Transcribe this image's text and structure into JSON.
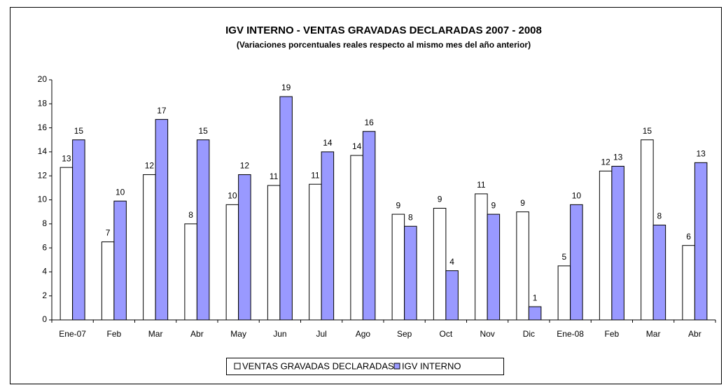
{
  "chart_data": {
    "type": "bar",
    "title": "IGV INTERNO - VENTAS GRAVADAS DECLARADAS 2007 - 2008",
    "subtitle": "(Variaciones porcentuales reales respecto al mismo mes del año anterior)",
    "categories": [
      "Ene-07",
      "Feb",
      "Mar",
      "Abr",
      "May",
      "Jun",
      "Jul",
      "Ago",
      "Sep",
      "Oct",
      "Nov",
      "Dic",
      "Ene-08",
      "Feb",
      "Mar",
      "Abr"
    ],
    "series": [
      {
        "name": "VENTAS GRAVADAS DECLARADAS",
        "color": "#ffffff",
        "values": [
          12.7,
          6.5,
          12.1,
          8.0,
          9.6,
          11.2,
          11.3,
          13.7,
          8.8,
          9.3,
          10.5,
          9.0,
          4.5,
          12.4,
          15.0,
          6.2
        ],
        "value_labels": [
          "13",
          "7",
          "12",
          "8",
          "10",
          "11",
          "11",
          "14",
          "9",
          "9",
          "11",
          "9",
          "5",
          "12",
          "15",
          "6"
        ]
      },
      {
        "name": "IGV INTERNO",
        "color": "#9999ff",
        "values": [
          15.0,
          9.9,
          16.7,
          15.0,
          12.1,
          18.6,
          14.0,
          15.7,
          7.8,
          4.1,
          8.8,
          1.1,
          9.6,
          12.8,
          7.9,
          13.1
        ],
        "value_labels": [
          "15",
          "10",
          "17",
          "15",
          "12",
          "19",
          "14",
          "16",
          "8",
          "4",
          "9",
          "1",
          "10",
          "13",
          "8",
          "13"
        ]
      }
    ],
    "ylim": [
      0,
      20
    ],
    "yticks": [
      0,
      2,
      4,
      6,
      8,
      10,
      12,
      14,
      16,
      18,
      20
    ],
    "grid": false,
    "legend": "bottom"
  }
}
